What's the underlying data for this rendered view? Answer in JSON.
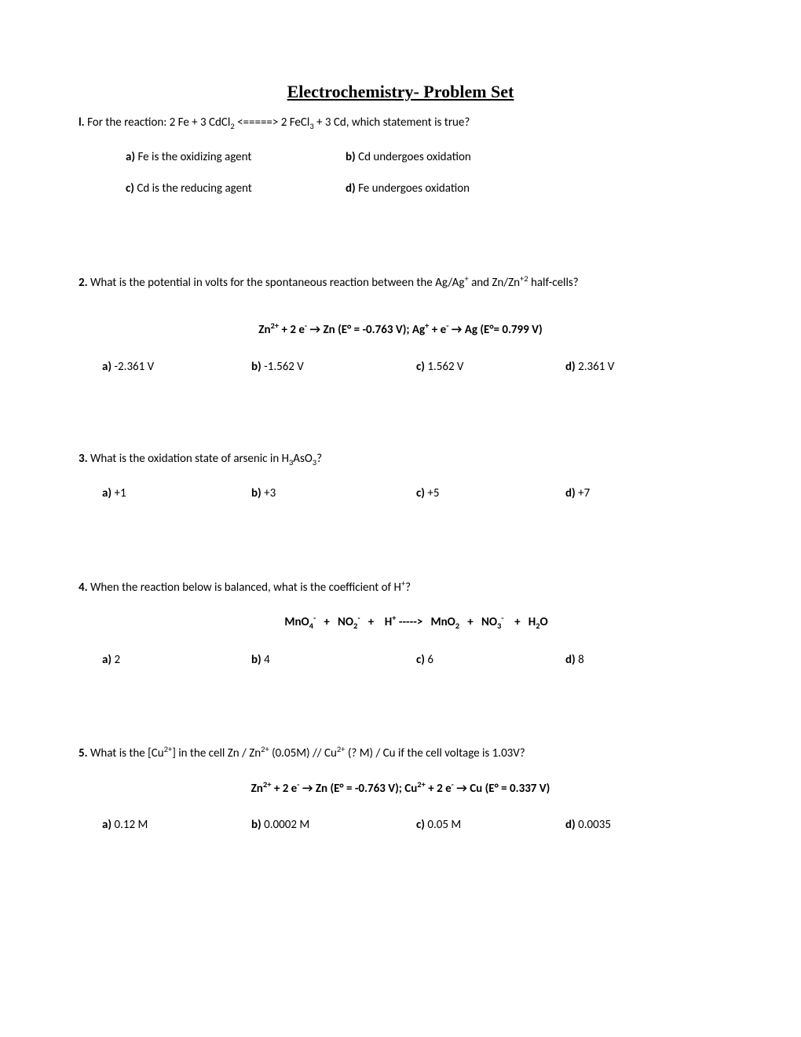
{
  "title": "Electrochemistry- Problem Set",
  "q1": {
    "num": "l.",
    "text_before": " For the reaction: 2 Fe + 3 CdCl",
    "sub1": "2",
    "text_mid": " <=====> 2 FeCl",
    "sub2": "3",
    "text_after": " + 3 Cd, which statement is true?",
    "a_label": "a)",
    "a_text": "  Fe is the oxidizing agent",
    "b_label": "b)",
    "b_text": "  Cd undergoes oxidation",
    "c_label": "c)",
    "c_text": "  Cd is the reducing agent",
    "d_label": "d)",
    "d_text": " Fe undergoes oxidation"
  },
  "q2": {
    "num": "2.",
    "text_before": " What is the potential in volts for the spontaneous reaction between the Ag/Ag",
    "sup1": "+",
    "text_mid": " and Zn/Zn",
    "sup2": "+2",
    "text_after": " half-cells?",
    "eq_p1": "Zn",
    "eq_sup1": "2+",
    "eq_p2": " + 2 e",
    "eq_sup2": "-",
    "eq_p3": " →  Zn     (E° = -0.763 V); Ag",
    "eq_sup3": "+",
    "eq_p4": " + e",
    "eq_sup4": "-",
    "eq_p5": " → Ag     (E°= 0.799 V)",
    "a_label": "a)",
    "a_text": " -2.361 V",
    "b_label": "b)",
    "b_text": " -1.562 V",
    "c_label": "c)",
    "c_text": " 1.562 V",
    "d_label": "d)",
    "d_text": " 2.361 V"
  },
  "q3": {
    "num": "3.",
    "text_before": " What is the oxidation state of arsenic in H",
    "sub1": "3",
    "text_mid": "AsO",
    "sub2": "3",
    "text_after": "?",
    "a_label": "a)",
    "a_text": " +1",
    "b_label": "b)",
    "b_text": "  +3",
    "c_label": "c)",
    "c_text": "  +5",
    "d_label": "d)",
    "d_text": "  +7"
  },
  "q4": {
    "num": "4.",
    "text_before": " When the reaction below is balanced, what is the coefficient of H",
    "sup1": "+",
    "text_after": "?",
    "eq_p1": "MnO",
    "eq_sub1": "4",
    "eq_sup1": "-",
    "eq_p2": "   +   NO",
    "eq_sub2": "2",
    "eq_sup2": "-",
    "eq_p3": "   +    H",
    "eq_sup3": "+",
    "eq_p4": " ----->   MnO",
    "eq_sub3": "2",
    "eq_p5": "   +   NO",
    "eq_sub4": "3",
    "eq_sup4": "-",
    "eq_p6": "    +   H",
    "eq_sub5": "2",
    "eq_p7": "O",
    "a_label": "a)",
    "a_text": " 2",
    "b_label": "b)",
    "b_text": "  4",
    "c_label": "c)",
    "c_text": "  6",
    "d_label": "d)",
    "d_text": "  8"
  },
  "q5": {
    "num": "5.",
    "text_before": " What is the [Cu",
    "sup1": "2+",
    "text_mid1": "] in the cell Zn / Zn",
    "sup2": "2+",
    "text_mid2": " (0.05M) // Cu",
    "sup3": "2+",
    "text_after": " (? M) / Cu if the cell voltage is 1.03V?",
    "eq_p1": "Zn",
    "eq_sup1": "2+",
    "eq_p2": " + 2 e",
    "eq_sup2": "-",
    "eq_p3": " →  Zn     (E° = -0.763 V);   Cu",
    "eq_sup3": "2+",
    "eq_p4": " + 2 e",
    "eq_sup4": "-",
    "eq_p5": " →  Cu    (E° = 0.337 V)",
    "a_label": "a)",
    "a_text": " 0.12 M",
    "b_label": "b)",
    "b_text": "  0.0002 M",
    "c_label": "c)",
    "c_text": "  0.05 M",
    "d_label": "d)",
    "d_text": "  0.0035"
  }
}
